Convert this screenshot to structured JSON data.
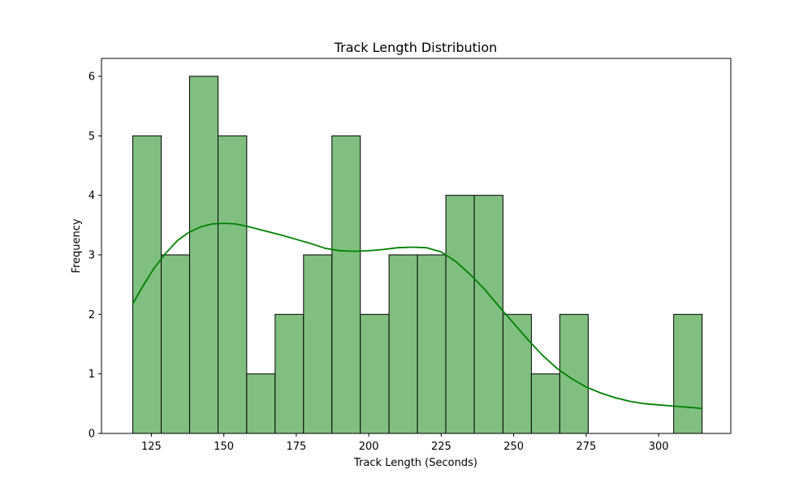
{
  "chart_data": {
    "type": "bar",
    "title": "Track Length Distribution",
    "xlabel": "Track Length (Seconds)",
    "ylabel": "Frequency",
    "xlim": [
      107.8,
      324.9
    ],
    "ylim": [
      0,
      6.3
    ],
    "x_ticks": [
      125,
      150,
      175,
      200,
      225,
      250,
      275,
      300
    ],
    "y_ticks": [
      0,
      1,
      2,
      3,
      4,
      5,
      6
    ],
    "bins": {
      "edges": [
        118.6,
        128.4,
        138.2,
        148.0,
        157.9,
        167.7,
        177.5,
        187.3,
        197.1,
        207.0,
        216.8,
        226.6,
        236.4,
        246.3,
        256.1,
        265.9,
        275.7,
        285.5,
        295.4,
        305.2,
        315.0
      ],
      "counts": [
        5,
        3,
        6,
        5,
        1,
        2,
        3,
        5,
        2,
        3,
        3,
        4,
        4,
        2,
        1,
        2,
        0,
        0,
        0,
        2
      ]
    },
    "kde": {
      "x": [
        118.6,
        122,
        126,
        130,
        134,
        138,
        142,
        146,
        150,
        154,
        158,
        162,
        166,
        170,
        175,
        180,
        185,
        190,
        195,
        200,
        205,
        210,
        215,
        220,
        225,
        230,
        235,
        240,
        245,
        250,
        255,
        260,
        265,
        270,
        275,
        280,
        285,
        290,
        295,
        300,
        305,
        310,
        315
      ],
      "y": [
        2.18,
        2.47,
        2.78,
        3.03,
        3.24,
        3.38,
        3.47,
        3.52,
        3.53,
        3.52,
        3.48,
        3.43,
        3.38,
        3.33,
        3.26,
        3.19,
        3.11,
        3.07,
        3.06,
        3.07,
        3.09,
        3.12,
        3.13,
        3.12,
        3.05,
        2.89,
        2.67,
        2.42,
        2.13,
        1.85,
        1.57,
        1.31,
        1.09,
        0.92,
        0.78,
        0.68,
        0.6,
        0.54,
        0.5,
        0.48,
        0.46,
        0.44,
        0.42
      ]
    },
    "colors": {
      "bar_fill": "#80bf80",
      "bar_edge": "#000000",
      "kde_line": "#008000"
    },
    "grid": false,
    "legend": "none"
  }
}
